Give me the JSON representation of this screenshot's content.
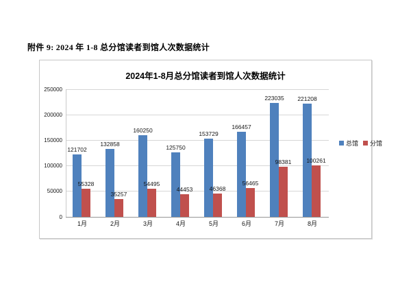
{
  "page": {
    "heading": "附件 9: 2024 年 1-8 总分馆读者到馆人次数据统计"
  },
  "chart_data": {
    "type": "bar",
    "title": "2024年1-8月总分馆读者到馆人次数据统计",
    "categories": [
      "1月",
      "2月",
      "3月",
      "4月",
      "5月",
      "6月",
      "7月",
      "8月"
    ],
    "series": [
      {
        "name": "总馆",
        "color": "#4f81bd",
        "values": [
          121702,
          132858,
          160250,
          125750,
          153729,
          166457,
          223035,
          221208
        ]
      },
      {
        "name": "分馆",
        "color": "#c0504d",
        "values": [
          55328,
          35257,
          54495,
          44453,
          46368,
          56465,
          98381,
          100261
        ]
      }
    ],
    "ylim": [
      0,
      250000
    ],
    "ytick_interval": 50000,
    "ytick_labels": [
      "0",
      "50000",
      "100000",
      "150000",
      "200000",
      "250000"
    ],
    "grid": true,
    "legend_position": "right",
    "data_labels": true,
    "colors": {
      "grid": "#d6d6d6",
      "axis": "#969696",
      "text": "#161616"
    }
  }
}
